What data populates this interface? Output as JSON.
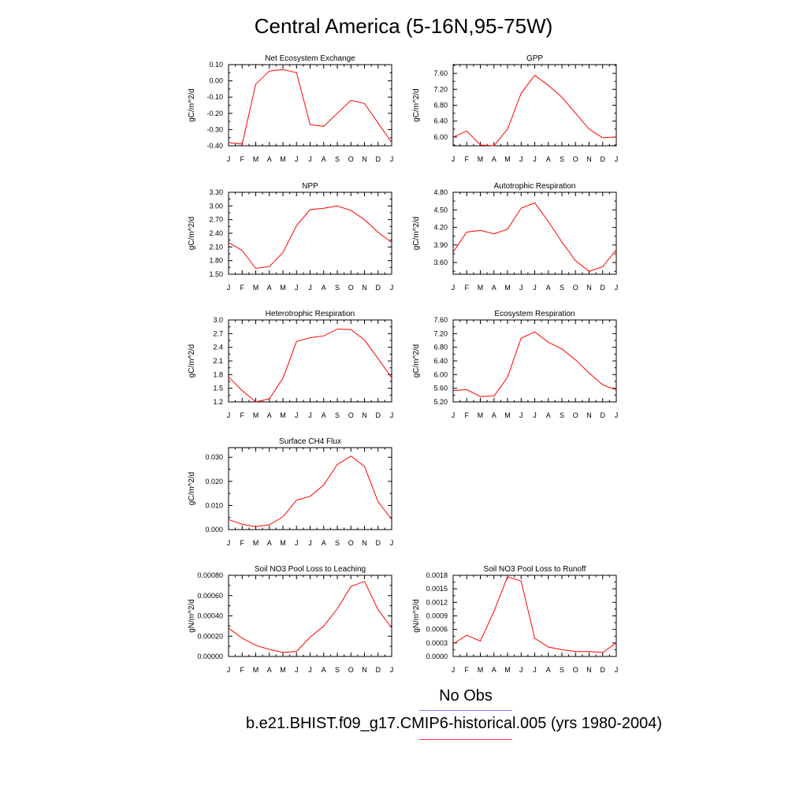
{
  "title": "Central America (5-16N,95-75W)",
  "legend": {
    "obs_label": "No Obs",
    "case_label": "b.e21.BHIST.f09_g17.CMIP6-historical.005 (yrs 1980-2004)",
    "obs_color": "#8080ff",
    "case_color": "#ff0000"
  },
  "chart_data": [
    {
      "type": "line",
      "title": "Net Ecosystem Exchange",
      "ylabel": "gC/m^2/d",
      "categories": [
        "J",
        "F",
        "M",
        "A",
        "M",
        "J",
        "J",
        "A",
        "S",
        "O",
        "N",
        "D",
        "J"
      ],
      "ylim": [
        -0.4,
        0.1
      ],
      "yticks": [
        "0.10",
        "0.00",
        "-0.10",
        "-0.20",
        "-0.30",
        "-0.40"
      ],
      "series": [
        {
          "name": "b.e21.BHIST.f09_g17.CMIP6-historical.005",
          "values": [
            -0.38,
            -0.39,
            -0.02,
            0.06,
            0.07,
            0.05,
            -0.27,
            -0.28,
            -0.2,
            -0.12,
            -0.14,
            -0.26,
            -0.38
          ]
        }
      ]
    },
    {
      "type": "line",
      "title": "GPP",
      "ylabel": "gC/m^2/d",
      "categories": [
        "J",
        "F",
        "M",
        "A",
        "M",
        "J",
        "J",
        "A",
        "S",
        "O",
        "N",
        "D",
        "J"
      ],
      "ylim": [
        5.78,
        7.82
      ],
      "yticks": [
        "7.60",
        "7.20",
        "6.80",
        "6.40",
        "6.00"
      ],
      "series": [
        {
          "name": "b.e21.BHIST.f09_g17.CMIP6-historical.005",
          "values": [
            6.0,
            6.15,
            5.8,
            5.78,
            6.2,
            7.1,
            7.55,
            7.3,
            7.0,
            6.6,
            6.2,
            5.98,
            6.0
          ]
        }
      ]
    },
    {
      "type": "line",
      "title": "NPP",
      "ylabel": "gC/m^2/d",
      "categories": [
        "J",
        "F",
        "M",
        "A",
        "M",
        "J",
        "J",
        "A",
        "S",
        "O",
        "N",
        "D",
        "J"
      ],
      "ylim": [
        1.5,
        3.3
      ],
      "yticks": [
        "3.30",
        "3.00",
        "2.70",
        "2.40",
        "2.10",
        "1.80",
        "1.50"
      ],
      "series": [
        {
          "name": "b.e21.BHIST.f09_g17.CMIP6-historical.005",
          "values": [
            2.2,
            2.02,
            1.63,
            1.67,
            1.98,
            2.57,
            2.92,
            2.95,
            3.0,
            2.9,
            2.7,
            2.42,
            2.2
          ]
        }
      ]
    },
    {
      "type": "line",
      "title": "Autotrophic Respiration",
      "ylabel": "gC/m^2/d",
      "categories": [
        "J",
        "F",
        "M",
        "A",
        "M",
        "J",
        "J",
        "A",
        "S",
        "O",
        "N",
        "D",
        "J"
      ],
      "ylim": [
        3.4,
        4.8
      ],
      "yticks": [
        "4.80",
        "4.50",
        "4.20",
        "3.90",
        "3.60"
      ],
      "series": [
        {
          "name": "b.e21.BHIST.f09_g17.CMIP6-historical.005",
          "values": [
            3.78,
            4.12,
            4.15,
            4.09,
            4.17,
            4.53,
            4.62,
            4.3,
            3.95,
            3.63,
            3.45,
            3.53,
            3.82
          ]
        }
      ]
    },
    {
      "type": "line",
      "title": "Heterotrophic Respiration",
      "ylabel": "gC/m^2/d",
      "categories": [
        "J",
        "F",
        "M",
        "A",
        "M",
        "J",
        "J",
        "A",
        "S",
        "O",
        "N",
        "D",
        "J"
      ],
      "ylim": [
        1.2,
        3.0
      ],
      "yticks": [
        "3.0",
        "2.7",
        "2.4",
        "2.1",
        "1.8",
        "1.5",
        "1.2"
      ],
      "series": [
        {
          "name": "b.e21.BHIST.f09_g17.CMIP6-historical.005",
          "values": [
            1.75,
            1.45,
            1.2,
            1.27,
            1.72,
            2.53,
            2.61,
            2.65,
            2.8,
            2.79,
            2.56,
            2.15,
            1.73
          ]
        }
      ]
    },
    {
      "type": "line",
      "title": "Ecosystem Respiration",
      "ylabel": "gC/m^2/d",
      "categories": [
        "J",
        "F",
        "M",
        "A",
        "M",
        "J",
        "J",
        "A",
        "S",
        "O",
        "N",
        "D",
        "J"
      ],
      "ylim": [
        5.2,
        7.6
      ],
      "yticks": [
        "7.60",
        "7.20",
        "6.80",
        "6.40",
        "6.00",
        "5.60",
        "5.20"
      ],
      "series": [
        {
          "name": "b.e21.BHIST.f09_g17.CMIP6-historical.005",
          "values": [
            5.53,
            5.56,
            5.36,
            5.37,
            5.92,
            7.07,
            7.25,
            6.95,
            6.75,
            6.43,
            6.05,
            5.7,
            5.55
          ]
        }
      ]
    },
    {
      "type": "line",
      "title": "Surface CH4 Flux",
      "ylabel": "gC/m^2/d",
      "categories": [
        "J",
        "F",
        "M",
        "A",
        "M",
        "J",
        "J",
        "A",
        "S",
        "O",
        "N",
        "D",
        "J"
      ],
      "ylim": [
        0.0,
        0.034
      ],
      "yticks": [
        "0.030",
        "0.020",
        "0.010",
        "0.000"
      ],
      "series": [
        {
          "name": "b.e21.BHIST.f09_g17.CMIP6-historical.005",
          "values": [
            0.0042,
            0.0022,
            0.0012,
            0.002,
            0.0053,
            0.0122,
            0.0138,
            0.0185,
            0.027,
            0.0305,
            0.0262,
            0.0115,
            0.0043
          ]
        }
      ]
    },
    {
      "type": "line",
      "title": "Soil NO3 Pool Loss to Leaching",
      "ylabel": "gN/m^2/d",
      "categories": [
        "J",
        "F",
        "M",
        "A",
        "M",
        "J",
        "J",
        "A",
        "S",
        "O",
        "N",
        "D",
        "J"
      ],
      "ylim": [
        0.0,
        0.0008
      ],
      "yticks": [
        "0.00080",
        "0.00060",
        "0.00040",
        "0.00020",
        "0.00000"
      ],
      "series": [
        {
          "name": "b.e21.BHIST.f09_g17.CMIP6-historical.005",
          "values": [
            0.00028,
            0.00018,
            0.00011,
            7e-05,
            4e-05,
            5e-05,
            0.00019,
            0.0003,
            0.00047,
            0.00069,
            0.00074,
            0.00046,
            0.00028
          ]
        }
      ]
    },
    {
      "type": "line",
      "title": "Soil NO3 Pool Loss to Runoff",
      "ylabel": "gN/m^2/d",
      "categories": [
        "J",
        "F",
        "M",
        "A",
        "M",
        "J",
        "J",
        "A",
        "S",
        "O",
        "N",
        "D",
        "J"
      ],
      "ylim": [
        0.0,
        0.0018
      ],
      "yticks": [
        "0.0018",
        "0.0015",
        "0.0012",
        "0.0009",
        "0.0006",
        "0.0003",
        "0.0000"
      ],
      "series": [
        {
          "name": "b.e21.BHIST.f09_g17.CMIP6-historical.005",
          "values": [
            0.00028,
            0.00047,
            0.00034,
            0.001,
            0.00177,
            0.00167,
            0.0004,
            0.00021,
            0.00015,
            0.00011,
            0.00011,
            9e-05,
            0.0003
          ]
        }
      ]
    }
  ]
}
